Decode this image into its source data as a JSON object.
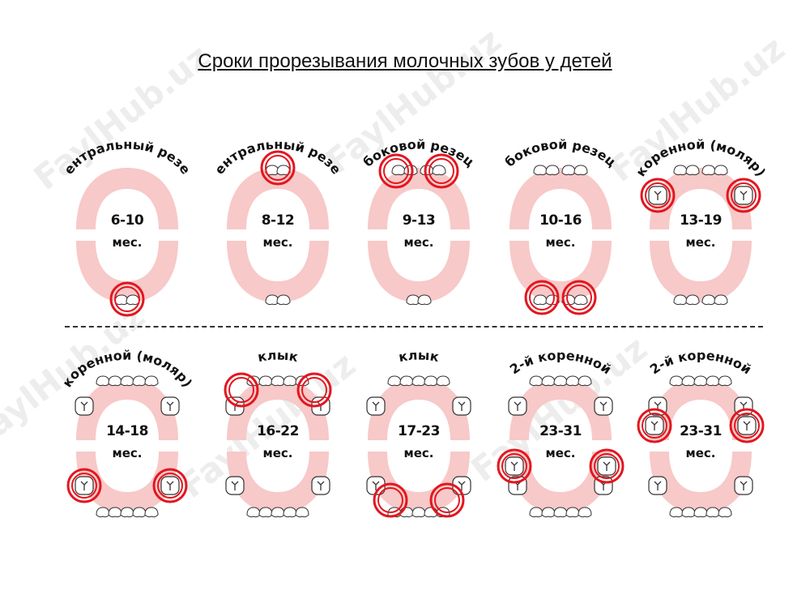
{
  "title": "Сроки прорезывания молочных зубов у детей",
  "watermark": "FaylHub.uz",
  "unit": "мес.",
  "cells": [
    {
      "label": "центральный резец",
      "age": "6-10"
    },
    {
      "label": "центральный резец",
      "age": "8-12"
    },
    {
      "label": "боковой резец",
      "age": "9-13"
    },
    {
      "label": "боковой резец",
      "age": "10-16"
    },
    {
      "label": "коренной (моляр)",
      "age": "13-19"
    },
    {
      "label": "коренной (моляр)",
      "age": "14-18"
    },
    {
      "label": "клык",
      "age": "16-22"
    },
    {
      "label": "клык",
      "age": "17-23"
    },
    {
      "label": "2-й коренной",
      "age": "23-31"
    },
    {
      "label": "2-й коренной",
      "age": "23-31"
    }
  ],
  "colors": {
    "gum": "#f7c9c8",
    "highlight": "#e3161f",
    "text": "#111111"
  }
}
